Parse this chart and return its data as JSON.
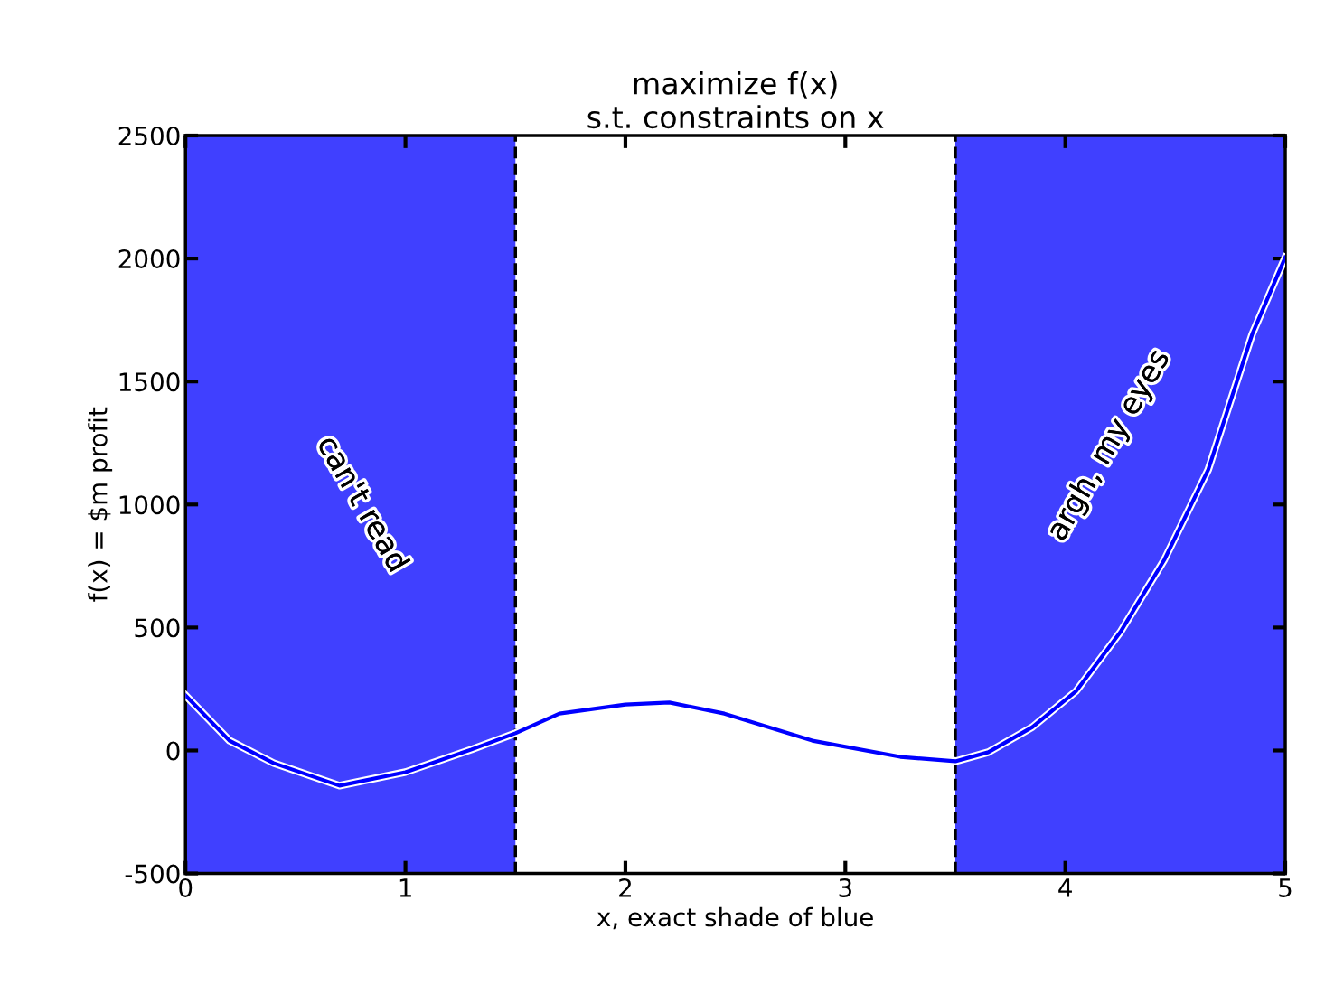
{
  "chart_data": {
    "type": "line",
    "title": "maximize f(x)\ns.t. constraints on x",
    "xlabel": "x, exact shade of blue",
    "ylabel": "f(x) = $m profit",
    "x": [
      0,
      0.2,
      0.4,
      0.7,
      1.0,
      1.3,
      1.5,
      1.7,
      2.0,
      2.2,
      2.45,
      2.85,
      3.25,
      3.5,
      3.65,
      3.85,
      4.05,
      4.25,
      4.45,
      4.65,
      4.85,
      5.0
    ],
    "series": [
      {
        "color": "#0000ff",
        "values": [
          224,
          40,
          -51,
          -143,
          -88,
          4,
          70,
          150,
          187,
          195,
          150,
          40,
          -26,
          -44,
          -7,
          95,
          242,
          481,
          775,
          1142,
          1693,
          2005
        ]
      }
    ],
    "xlim": [
      0,
      5
    ],
    "ylim": [
      -500,
      2500
    ],
    "xticks": [
      0,
      1,
      2,
      3,
      4,
      5
    ],
    "yticks": [
      -500,
      0,
      500,
      1000,
      1500,
      2000,
      2500
    ],
    "bands": [
      {
        "axis": "x",
        "from": 0,
        "to": 1.5,
        "color": "#4040ff"
      },
      {
        "axis": "x",
        "from": 3.5,
        "to": 5,
        "color": "#4040ff"
      }
    ],
    "ref_lines": [
      {
        "axis": "x",
        "value": 1.5,
        "color": "#000000",
        "line_style": "dashed"
      },
      {
        "axis": "x",
        "value": 3.5,
        "color": "#000000",
        "line_style": "dashed"
      }
    ],
    "annotations": [
      "can't read",
      "argh, my eyes"
    ],
    "grid": false,
    "line_style": "solid",
    "marker": "none"
  }
}
